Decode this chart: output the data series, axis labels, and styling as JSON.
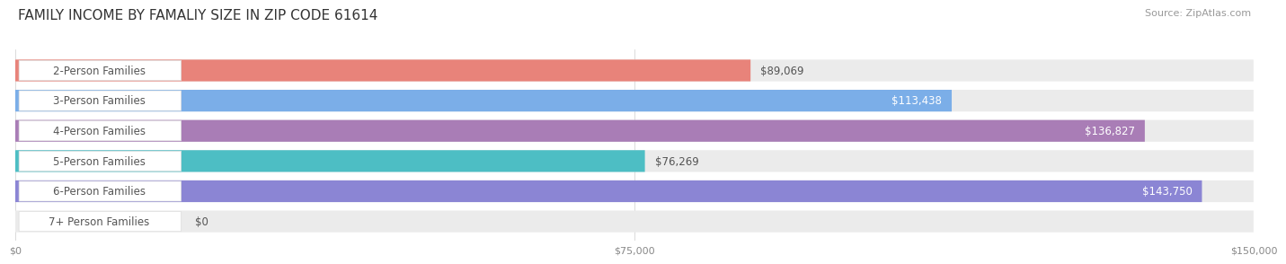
{
  "title": "FAMILY INCOME BY FAMALIY SIZE IN ZIP CODE 61614",
  "source": "Source: ZipAtlas.com",
  "categories": [
    "2-Person Families",
    "3-Person Families",
    "4-Person Families",
    "5-Person Families",
    "6-Person Families",
    "7+ Person Families"
  ],
  "values": [
    89069,
    113438,
    136827,
    76269,
    143750,
    0
  ],
  "bar_colors": [
    "#E8837A",
    "#7BAEE8",
    "#A97DB6",
    "#4DBEC4",
    "#8B85D4",
    "#F4A7B9"
  ],
  "bar_bg_color": "#EBEBEB",
  "value_labels": [
    "$89,069",
    "$113,438",
    "$136,827",
    "$76,269",
    "$143,750",
    "$0"
  ],
  "value_inside": [
    false,
    true,
    true,
    false,
    true,
    false
  ],
  "xlim": [
    0,
    150000
  ],
  "xticks": [
    0,
    75000,
    150000
  ],
  "xtick_labels": [
    "$0",
    "$75,000",
    "$150,000"
  ],
  "background_color": "#ffffff",
  "bar_height": 0.72,
  "title_fontsize": 11,
  "label_fontsize": 8.5,
  "value_fontsize": 8.5,
  "source_fontsize": 8
}
